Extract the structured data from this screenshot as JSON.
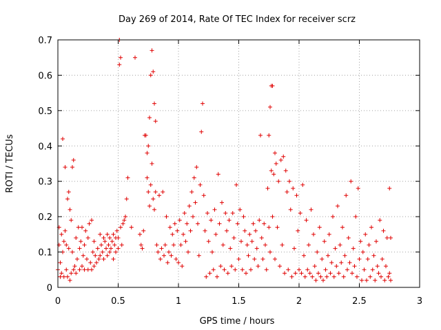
{
  "chart_data": {
    "type": "scatter",
    "title": "Day 269 of 2014, Rate Of TEC Index for receiver scrz",
    "xlabel": "GPS time / hours",
    "ylabel": "ROTI / TECUs",
    "xlim": [
      0,
      3
    ],
    "ylim": [
      0,
      0.7
    ],
    "xticks": [
      "0",
      "0.5",
      "1",
      "1.5",
      "2",
      "2.5",
      "3"
    ],
    "yticks": [
      "0",
      "0.1",
      "0.2",
      "0.3",
      "0.4",
      "0.5",
      "0.6",
      "0.7"
    ],
    "grid": true,
    "marker": "+",
    "color": "#e00000",
    "series": [
      {
        "name": "ROTI",
        "points": [
          [
            0.0,
            0.05
          ],
          [
            0.01,
            0.17
          ],
          [
            0.01,
            0.12
          ],
          [
            0.02,
            0.03
          ],
          [
            0.02,
            0.07
          ],
          [
            0.03,
            0.15
          ],
          [
            0.03,
            0.04
          ],
          [
            0.04,
            0.42
          ],
          [
            0.04,
            0.1
          ],
          [
            0.05,
            0.13
          ],
          [
            0.05,
            0.03
          ],
          [
            0.06,
            0.34
          ],
          [
            0.06,
            0.16
          ],
          [
            0.07,
            0.05
          ],
          [
            0.07,
            0.12
          ],
          [
            0.08,
            0.25
          ],
          [
            0.08,
            0.03
          ],
          [
            0.09,
            0.27
          ],
          [
            0.09,
            0.11
          ],
          [
            0.1,
            0.22
          ],
          [
            0.1,
            0.02
          ],
          [
            0.11,
            0.19
          ],
          [
            0.11,
            0.04
          ],
          [
            0.12,
            0.1
          ],
          [
            0.12,
            0.34
          ],
          [
            0.13,
            0.36
          ],
          [
            0.13,
            0.05
          ],
          [
            0.14,
            0.06
          ],
          [
            0.15,
            0.14
          ],
          [
            0.15,
            0.04
          ],
          [
            0.16,
            0.08
          ],
          [
            0.17,
            0.17
          ],
          [
            0.18,
            0.11
          ],
          [
            0.18,
            0.05
          ],
          [
            0.19,
            0.13
          ],
          [
            0.2,
            0.17
          ],
          [
            0.2,
            0.06
          ],
          [
            0.21,
            0.09
          ],
          [
            0.22,
            0.12
          ],
          [
            0.22,
            0.05
          ],
          [
            0.23,
            0.16
          ],
          [
            0.24,
            0.08
          ],
          [
            0.25,
            0.14
          ],
          [
            0.25,
            0.05
          ],
          [
            0.26,
            0.18
          ],
          [
            0.27,
            0.07
          ],
          [
            0.28,
            0.19
          ],
          [
            0.28,
            0.05
          ],
          [
            0.29,
            0.1
          ],
          [
            0.3,
            0.13
          ],
          [
            0.3,
            0.06
          ],
          [
            0.31,
            0.09
          ],
          [
            0.32,
            0.07
          ],
          [
            0.33,
            0.11
          ],
          [
            0.34,
            0.08
          ],
          [
            0.35,
            0.15
          ],
          [
            0.35,
            0.09
          ],
          [
            0.36,
            0.12
          ],
          [
            0.37,
            0.1
          ],
          [
            0.38,
            0.14
          ],
          [
            0.38,
            0.08
          ],
          [
            0.39,
            0.13
          ],
          [
            0.4,
            0.11
          ],
          [
            0.41,
            0.15
          ],
          [
            0.41,
            0.09
          ],
          [
            0.42,
            0.12
          ],
          [
            0.43,
            0.14
          ],
          [
            0.43,
            0.1
          ],
          [
            0.44,
            0.11
          ],
          [
            0.45,
            0.13
          ],
          [
            0.46,
            0.15
          ],
          [
            0.46,
            0.08
          ],
          [
            0.47,
            0.12
          ],
          [
            0.48,
            0.14
          ],
          [
            0.48,
            0.1
          ],
          [
            0.49,
            0.16
          ],
          [
            0.5,
            0.11
          ],
          [
            0.5,
            0.14
          ],
          [
            0.51,
            0.7
          ],
          [
            0.51,
            0.63
          ],
          [
            0.52,
            0.65
          ],
          [
            0.52,
            0.17
          ],
          [
            0.53,
            0.12
          ],
          [
            0.54,
            0.18
          ],
          [
            0.55,
            0.19
          ],
          [
            0.56,
            0.2
          ],
          [
            0.57,
            0.25
          ],
          [
            0.58,
            0.31
          ],
          [
            0.61,
            0.17
          ],
          [
            0.64,
            0.65
          ],
          [
            0.68,
            0.15
          ],
          [
            0.69,
            0.12
          ],
          [
            0.7,
            0.11
          ],
          [
            0.71,
            0.16
          ],
          [
            0.72,
            0.43
          ],
          [
            0.73,
            0.43
          ],
          [
            0.74,
            0.38
          ],
          [
            0.74,
            0.31
          ],
          [
            0.75,
            0.4
          ],
          [
            0.75,
            0.27
          ],
          [
            0.76,
            0.48
          ],
          [
            0.76,
            0.23
          ],
          [
            0.77,
            0.6
          ],
          [
            0.77,
            0.29
          ],
          [
            0.78,
            0.67
          ],
          [
            0.78,
            0.35
          ],
          [
            0.79,
            0.61
          ],
          [
            0.79,
            0.25
          ],
          [
            0.8,
            0.52
          ],
          [
            0.8,
            0.22
          ],
          [
            0.81,
            0.47
          ],
          [
            0.81,
            0.27
          ],
          [
            0.82,
            0.12
          ],
          [
            0.83,
            0.1
          ],
          [
            0.84,
            0.26
          ],
          [
            0.85,
            0.08
          ],
          [
            0.86,
            0.11
          ],
          [
            0.87,
            0.27
          ],
          [
            0.88,
            0.09
          ],
          [
            0.89,
            0.12
          ],
          [
            0.9,
            0.2
          ],
          [
            0.91,
            0.07
          ],
          [
            0.92,
            0.1
          ],
          [
            0.93,
            0.17
          ],
          [
            0.94,
            0.09
          ],
          [
            0.95,
            0.15
          ],
          [
            0.96,
            0.12
          ],
          [
            0.97,
            0.18
          ],
          [
            0.98,
            0.08
          ],
          [
            0.99,
            0.16
          ],
          [
            1.0,
            0.07
          ],
          [
            1.01,
            0.19
          ],
          [
            1.02,
            0.12
          ],
          [
            1.03,
            0.06
          ],
          [
            1.04,
            0.15
          ],
          [
            1.05,
            0.21
          ],
          [
            1.06,
            0.13
          ],
          [
            1.07,
            0.18
          ],
          [
            1.08,
            0.1
          ],
          [
            1.09,
            0.23
          ],
          [
            1.1,
            0.16
          ],
          [
            1.11,
            0.27
          ],
          [
            1.12,
            0.2
          ],
          [
            1.13,
            0.31
          ],
          [
            1.14,
            0.24
          ],
          [
            1.15,
            0.34
          ],
          [
            1.16,
            0.18
          ],
          [
            1.17,
            0.09
          ],
          [
            1.18,
            0.29
          ],
          [
            1.19,
            0.44
          ],
          [
            1.2,
            0.52
          ],
          [
            1.21,
            0.26
          ],
          [
            1.22,
            0.16
          ],
          [
            1.23,
            0.03
          ],
          [
            1.24,
            0.21
          ],
          [
            1.25,
            0.13
          ],
          [
            1.26,
            0.04
          ],
          [
            1.27,
            0.19
          ],
          [
            1.28,
            0.1
          ],
          [
            1.29,
            0.05
          ],
          [
            1.3,
            0.22
          ],
          [
            1.31,
            0.15
          ],
          [
            1.32,
            0.03
          ],
          [
            1.33,
            0.32
          ],
          [
            1.34,
            0.18
          ],
          [
            1.35,
            0.06
          ],
          [
            1.36,
            0.24
          ],
          [
            1.37,
            0.12
          ],
          [
            1.38,
            0.05
          ],
          [
            1.39,
            0.21
          ],
          [
            1.4,
            0.16
          ],
          [
            1.41,
            0.04
          ],
          [
            1.42,
            0.19
          ],
          [
            1.43,
            0.11
          ],
          [
            1.44,
            0.06
          ],
          [
            1.45,
            0.21
          ],
          [
            1.46,
            0.14
          ],
          [
            1.47,
            0.05
          ],
          [
            1.48,
            0.29
          ],
          [
            1.49,
            0.18
          ],
          [
            1.5,
            0.08
          ],
          [
            1.51,
            0.22
          ],
          [
            1.52,
            0.13
          ],
          [
            1.53,
            0.05
          ],
          [
            1.54,
            0.2
          ],
          [
            1.55,
            0.16
          ],
          [
            1.56,
            0.04
          ],
          [
            1.57,
            0.12
          ],
          [
            1.58,
            0.09
          ],
          [
            1.59,
            0.15
          ],
          [
            1.6,
            0.05
          ],
          [
            1.61,
            0.13
          ],
          [
            1.62,
            0.18
          ],
          [
            1.63,
            0.08
          ],
          [
            1.64,
            0.16
          ],
          [
            1.65,
            0.11
          ],
          [
            1.66,
            0.06
          ],
          [
            1.67,
            0.19
          ],
          [
            1.68,
            0.43
          ],
          [
            1.69,
            0.14
          ],
          [
            1.7,
            0.08
          ],
          [
            1.71,
            0.18
          ],
          [
            1.72,
            0.12
          ],
          [
            1.73,
            0.05
          ],
          [
            1.74,
            0.28
          ],
          [
            1.75,
            0.43
          ],
          [
            1.75,
            0.17
          ],
          [
            1.76,
            0.51
          ],
          [
            1.76,
            0.1
          ],
          [
            1.77,
            0.57
          ],
          [
            1.77,
            0.33
          ],
          [
            1.78,
            0.57
          ],
          [
            1.78,
            0.2
          ],
          [
            1.79,
            0.32
          ],
          [
            1.8,
            0.38
          ],
          [
            1.8,
            0.08
          ],
          [
            1.81,
            0.35
          ],
          [
            1.82,
            0.17
          ],
          [
            1.83,
            0.3
          ],
          [
            1.84,
            0.06
          ],
          [
            1.85,
            0.36
          ],
          [
            1.86,
            0.12
          ],
          [
            1.87,
            0.37
          ],
          [
            1.88,
            0.04
          ],
          [
            1.89,
            0.33
          ],
          [
            1.9,
            0.27
          ],
          [
            1.91,
            0.05
          ],
          [
            1.92,
            0.3
          ],
          [
            1.93,
            0.22
          ],
          [
            1.94,
            0.03
          ],
          [
            1.95,
            0.28
          ],
          [
            1.96,
            0.11
          ],
          [
            1.97,
            0.04
          ],
          [
            1.98,
            0.26
          ],
          [
            1.99,
            0.16
          ],
          [
            2.0,
            0.05
          ],
          [
            2.01,
            0.21
          ],
          [
            2.02,
            0.04
          ],
          [
            2.03,
            0.29
          ],
          [
            2.04,
            0.09
          ],
          [
            2.05,
            0.03
          ],
          [
            2.06,
            0.19
          ],
          [
            2.07,
            0.05
          ],
          [
            2.08,
            0.12
          ],
          [
            2.09,
            0.04
          ],
          [
            2.1,
            0.22
          ],
          [
            2.11,
            0.03
          ],
          [
            2.12,
            0.15
          ],
          [
            2.13,
            0.06
          ],
          [
            2.14,
            0.02
          ],
          [
            2.15,
            0.1
          ],
          [
            2.16,
            0.04
          ],
          [
            2.17,
            0.17
          ],
          [
            2.18,
            0.03
          ],
          [
            2.19,
            0.08
          ],
          [
            2.2,
            0.02
          ],
          [
            2.21,
            0.13
          ],
          [
            2.22,
            0.05
          ],
          [
            2.23,
            0.03
          ],
          [
            2.24,
            0.09
          ],
          [
            2.25,
            0.15
          ],
          [
            2.26,
            0.04
          ],
          [
            2.27,
            0.07
          ],
          [
            2.28,
            0.2
          ],
          [
            2.29,
            0.03
          ],
          [
            2.3,
            0.11
          ],
          [
            2.31,
            0.06
          ],
          [
            2.32,
            0.23
          ],
          [
            2.33,
            0.04
          ],
          [
            2.34,
            0.12
          ],
          [
            2.35,
            0.07
          ],
          [
            2.36,
            0.17
          ],
          [
            2.37,
            0.03
          ],
          [
            2.38,
            0.09
          ],
          [
            2.39,
            0.26
          ],
          [
            2.4,
            0.05
          ],
          [
            2.41,
            0.14
          ],
          [
            2.42,
            0.07
          ],
          [
            2.43,
            0.3
          ],
          [
            2.44,
            0.04
          ],
          [
            2.45,
            0.11
          ],
          [
            2.46,
            0.06
          ],
          [
            2.47,
            0.2
          ],
          [
            2.48,
            0.03
          ],
          [
            2.49,
            0.28
          ],
          [
            2.5,
            0.08
          ],
          [
            2.51,
            0.13
          ],
          [
            2.52,
            0.02
          ],
          [
            2.53,
            0.1
          ],
          [
            2.54,
            0.05
          ],
          [
            2.55,
            0.15
          ],
          [
            2.56,
            0.02
          ],
          [
            2.57,
            0.08
          ],
          [
            2.58,
            0.12
          ],
          [
            2.59,
            0.03
          ],
          [
            2.6,
            0.17
          ],
          [
            2.61,
            0.05
          ],
          [
            2.62,
            0.09
          ],
          [
            2.63,
            0.02
          ],
          [
            2.64,
            0.13
          ],
          [
            2.65,
            0.06
          ],
          [
            2.66,
            0.04
          ],
          [
            2.67,
            0.19
          ],
          [
            2.68,
            0.03
          ],
          [
            2.69,
            0.08
          ],
          [
            2.7,
            0.16
          ],
          [
            2.71,
            0.02
          ],
          [
            2.72,
            0.06
          ],
          [
            2.73,
            0.14
          ],
          [
            2.74,
            0.03
          ],
          [
            2.75,
            0.28
          ],
          [
            2.75,
            0.04
          ],
          [
            2.76,
            0.02
          ],
          [
            2.76,
            0.14
          ]
        ]
      }
    ]
  }
}
